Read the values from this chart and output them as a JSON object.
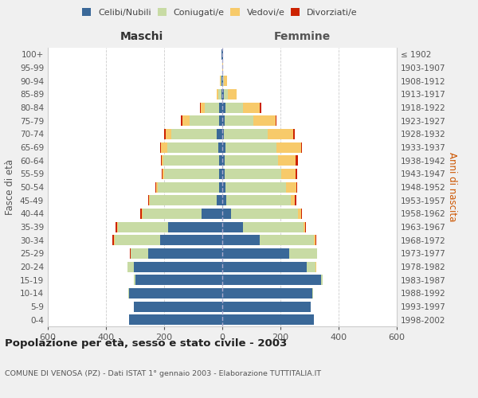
{
  "age_groups": [
    "0-4",
    "5-9",
    "10-14",
    "15-19",
    "20-24",
    "25-29",
    "30-34",
    "35-39",
    "40-44",
    "45-49",
    "50-54",
    "55-59",
    "60-64",
    "65-69",
    "70-74",
    "75-79",
    "80-84",
    "85-89",
    "90-94",
    "95-99",
    "100+"
  ],
  "birth_years": [
    "1998-2002",
    "1993-1997",
    "1988-1992",
    "1983-1987",
    "1978-1982",
    "1973-1977",
    "1968-1972",
    "1963-1967",
    "1958-1962",
    "1953-1957",
    "1948-1952",
    "1943-1947",
    "1938-1942",
    "1933-1937",
    "1928-1932",
    "1923-1927",
    "1918-1922",
    "1913-1917",
    "1908-1912",
    "1903-1907",
    "≤ 1902"
  ],
  "males": {
    "celibi": [
      320,
      305,
      320,
      300,
      305,
      255,
      215,
      185,
      70,
      20,
      12,
      10,
      12,
      15,
      20,
      12,
      10,
      3,
      2,
      1,
      2
    ],
    "coniugati": [
      0,
      0,
      2,
      5,
      20,
      60,
      155,
      175,
      205,
      230,
      210,
      190,
      190,
      175,
      155,
      100,
      50,
      10,
      3,
      0,
      0
    ],
    "vedovi": [
      0,
      0,
      0,
      0,
      0,
      0,
      3,
      3,
      3,
      3,
      5,
      5,
      5,
      20,
      20,
      25,
      15,
      5,
      2,
      0,
      0
    ],
    "divorziati": [
      0,
      0,
      0,
      0,
      2,
      2,
      5,
      5,
      5,
      3,
      3,
      3,
      3,
      5,
      5,
      5,
      2,
      0,
      0,
      0,
      0
    ]
  },
  "females": {
    "nubili": [
      315,
      305,
      310,
      340,
      290,
      230,
      130,
      70,
      30,
      15,
      10,
      8,
      8,
      10,
      5,
      8,
      10,
      5,
      3,
      1,
      2
    ],
    "coniugate": [
      0,
      0,
      2,
      5,
      30,
      95,
      185,
      210,
      230,
      220,
      210,
      195,
      185,
      175,
      150,
      100,
      60,
      15,
      3,
      0,
      0
    ],
    "vedove": [
      0,
      0,
      0,
      0,
      2,
      2,
      5,
      5,
      10,
      15,
      35,
      50,
      60,
      85,
      90,
      75,
      60,
      30,
      10,
      2,
      0
    ],
    "divorziate": [
      0,
      0,
      0,
      0,
      0,
      0,
      3,
      3,
      5,
      5,
      3,
      5,
      8,
      5,
      3,
      3,
      3,
      0,
      0,
      0,
      0
    ]
  },
  "colors": {
    "celibi": "#3a6898",
    "coniugati": "#c8dba4",
    "vedovi": "#f7ca6a",
    "divorziati": "#cc2200"
  },
  "xlim": 600,
  "title": "Popolazione per età, sesso e stato civile - 2003",
  "subtitle": "COMUNE DI VENOSA (PZ) - Dati ISTAT 1° gennaio 2003 - Elaborazione TUTTITALIA.IT",
  "xlabel_left": "Maschi",
  "xlabel_right": "Femmine",
  "ylabel_left": "Fasce di età",
  "ylabel_right": "Anni di nascita",
  "legend_labels": [
    "Celibi/Nubili",
    "Coniugati/e",
    "Vedovi/e",
    "Divorziati/e"
  ],
  "background_color": "#f0f0f0",
  "plot_bg": "#ffffff"
}
